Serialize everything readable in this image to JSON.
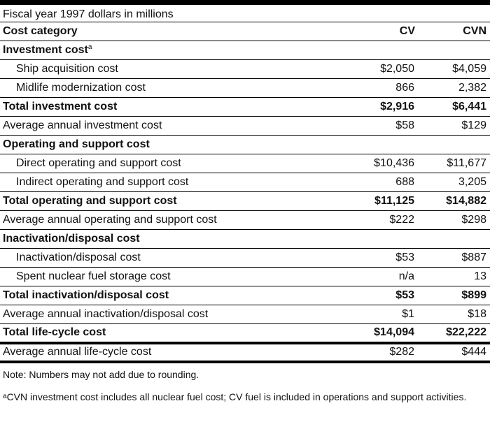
{
  "caption": "Fiscal year 1997 dollars in millions",
  "header": {
    "category": "Cost category",
    "col1": "CV",
    "col2": "CVN"
  },
  "rows": [
    {
      "label": "Investment cost",
      "sup": "a",
      "cv": "",
      "cvn": ""
    },
    {
      "label": "Ship acquisition cost",
      "cv": "$2,050",
      "cvn": "$4,059"
    },
    {
      "label": "Midlife modernization cost",
      "cv": "866",
      "cvn": "2,382"
    },
    {
      "label": "Total investment cost",
      "cv": "$2,916",
      "cvn": "$6,441"
    },
    {
      "label": "Average annual investment cost",
      "cv": "$58",
      "cvn": "$129"
    },
    {
      "label": "Operating and support cost",
      "cv": "",
      "cvn": ""
    },
    {
      "label": "Direct operating and support cost",
      "cv": "$10,436",
      "cvn": "$11,677"
    },
    {
      "label": "Indirect operating and support cost",
      "cv": "688",
      "cvn": "3,205"
    },
    {
      "label": "Total operating and support cost",
      "cv": "$11,125",
      "cvn": "$14,882"
    },
    {
      "label": "Average annual operating and support cost",
      "cv": "$222",
      "cvn": "$298"
    },
    {
      "label": "Inactivation/disposal cost",
      "cv": "",
      "cvn": ""
    },
    {
      "label": "Inactivation/disposal cost",
      "cv": "$53",
      "cvn": "$887"
    },
    {
      "label": "Spent nuclear fuel storage cost",
      "cv": "n/a",
      "cvn": "13"
    },
    {
      "label": "Total inactivation/disposal cost",
      "cv": "$53",
      "cvn": "$899"
    },
    {
      "label": "Average annual inactivation/disposal cost",
      "cv": "$1",
      "cvn": "$18"
    },
    {
      "label": "Total life-cycle cost",
      "cv": "$14,094",
      "cvn": "$22,222"
    },
    {
      "label": "Average annual life-cycle cost",
      "cv": "$282",
      "cvn": "$444"
    }
  ],
  "note": "Note: Numbers may not add due to rounding.",
  "footnote": {
    "marker": "a",
    "text": "CVN investment cost includes all nuclear fuel cost; CV fuel is included in operations and support activities."
  }
}
